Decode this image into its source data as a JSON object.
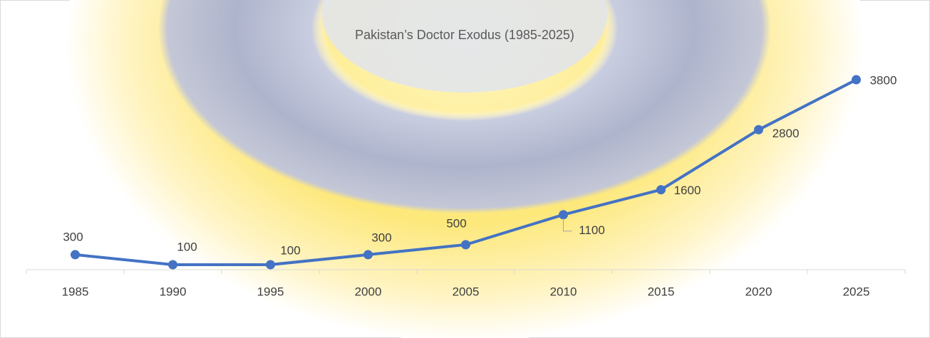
{
  "chart_data": {
    "type": "line",
    "title": "Pakistan’s Doctor Exodus (1985-2025)",
    "categories": [
      "1985",
      "1990",
      "1995",
      "2000",
      "2005",
      "2010",
      "2015",
      "2020",
      "2025"
    ],
    "values": [
      300,
      100,
      100,
      300,
      500,
      1100,
      1600,
      2800,
      3800
    ],
    "color": "#4472c4",
    "ylim": [
      0,
      4000
    ],
    "data_labels": true
  }
}
